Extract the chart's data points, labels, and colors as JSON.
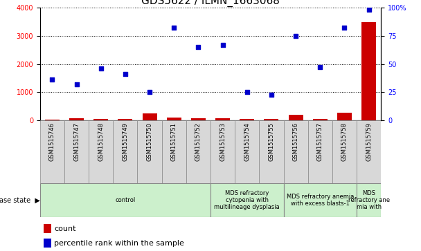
{
  "title": "GDS5622 / ILMN_1663068",
  "samples": [
    "GSM1515746",
    "GSM1515747",
    "GSM1515748",
    "GSM1515749",
    "GSM1515750",
    "GSM1515751",
    "GSM1515752",
    "GSM1515753",
    "GSM1515754",
    "GSM1515755",
    "GSM1515756",
    "GSM1515757",
    "GSM1515758",
    "GSM1515759"
  ],
  "count_values": [
    40,
    80,
    55,
    45,
    250,
    110,
    75,
    70,
    50,
    45,
    195,
    65,
    265,
    3480
  ],
  "percentile_values": [
    36,
    32,
    46,
    41,
    25,
    82,
    65,
    67,
    25,
    23,
    75,
    47,
    82,
    98
  ],
  "left_ylim": [
    0,
    4000
  ],
  "right_ylim": [
    0,
    100
  ],
  "left_yticks": [
    0,
    1000,
    2000,
    3000,
    4000
  ],
  "right_yticks": [
    0,
    25,
    50,
    75,
    100
  ],
  "right_yticklabels": [
    "0",
    "25",
    "50",
    "75",
    "100%"
  ],
  "disease_groups": [
    {
      "label": "control",
      "start": 0,
      "end": 7,
      "color": "#ccf0cc"
    },
    {
      "label": "MDS refractory\ncytopenia with\nmultilineage dysplasia",
      "start": 7,
      "end": 10,
      "color": "#ccf0cc"
    },
    {
      "label": "MDS refractory anemia\nwith excess blasts-1",
      "start": 10,
      "end": 13,
      "color": "#ccf0cc"
    },
    {
      "label": "MDS\nrefractory ane\nmia with",
      "start": 13,
      "end": 14,
      "color": "#ccf0cc"
    }
  ],
  "bar_color": "#cc0000",
  "dot_color": "#0000cc",
  "bg_color": "#ffffff",
  "sample_bg": "#d8d8d8",
  "disease_state_label": "disease state",
  "legend_count_label": "count",
  "legend_percentile_label": "percentile rank within the sample",
  "title_fontsize": 11,
  "tick_fontsize": 7,
  "label_fontsize": 7,
  "legend_fontsize": 8
}
